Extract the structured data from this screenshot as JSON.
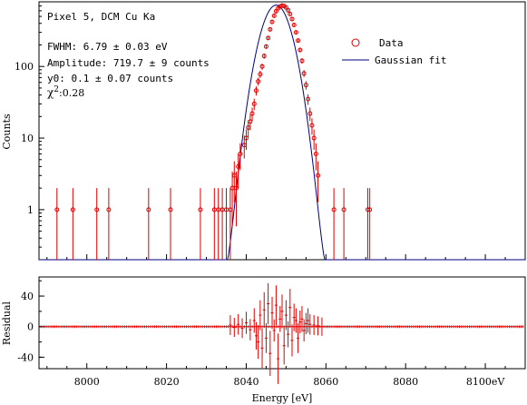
{
  "chart_data": [
    {
      "type": "scatter",
      "panel": "main",
      "annotations": {
        "title": "Pixel 5, DCM Cu Ka",
        "fwhm": "FWHM: 6.79 ± 0.03 eV",
        "amplitude": "Amplitude: 719.7 ± 9 counts",
        "y0": "y0: 0.1 ± 0.07 counts",
        "chi_symbol": "χ",
        "chi_sup": "2",
        "chi_value": ":0.28"
      },
      "ylabel": "Counts",
      "yscale": "log",
      "ylim": [
        0.2,
        800
      ],
      "yticks": [
        {
          "value": 1,
          "label": "1"
        },
        {
          "value": 10,
          "label": "10"
        },
        {
          "value": 100,
          "label": "100"
        }
      ],
      "xlim": [
        7988,
        8110
      ],
      "legend": {
        "position": "top-right",
        "entries": [
          {
            "label": "Data",
            "marker": "open-circle",
            "color": "#dd0000"
          },
          {
            "label": "Gaussian fit",
            "marker": "line",
            "color": "#000080"
          }
        ]
      },
      "fit": {
        "center": 8047.5,
        "fwhm": 6.79,
        "amplitude": 719.7,
        "offset": 0.1,
        "color": "#000080"
      },
      "series": [
        {
          "name": "Data",
          "color": "#dd0000",
          "points": [
            [
              7992.5,
              1
            ],
            [
              7996.5,
              1
            ],
            [
              8002.5,
              1
            ],
            [
              8005.5,
              1
            ],
            [
              8015.5,
              1
            ],
            [
              8021,
              1
            ],
            [
              8028.5,
              1
            ],
            [
              8032,
              1
            ],
            [
              8033,
              1
            ],
            [
              8034,
              1
            ],
            [
              8035,
              1
            ],
            [
              8036,
              1
            ],
            [
              8036.5,
              2
            ],
            [
              8037,
              3
            ],
            [
              8037.5,
              2
            ],
            [
              8038,
              4
            ],
            [
              8038.5,
              6
            ],
            [
              8039.5,
              8
            ],
            [
              8040,
              10
            ],
            [
              8040.5,
              14
            ],
            [
              8041,
              17
            ],
            [
              8041.5,
              22
            ],
            [
              8042,
              30
            ],
            [
              8042.5,
              46
            ],
            [
              8043,
              62
            ],
            [
              8043.5,
              78
            ],
            [
              8044,
              100
            ],
            [
              8044.5,
              140
            ],
            [
              8045,
              190
            ],
            [
              8045.5,
              250
            ],
            [
              8046,
              330
            ],
            [
              8046.5,
              420
            ],
            [
              8047,
              510
            ],
            [
              8047.5,
              590
            ],
            [
              8048,
              650
            ],
            [
              8048.5,
              690
            ],
            [
              8049,
              710
            ],
            [
              8049.5,
              700
            ],
            [
              8050,
              665
            ],
            [
              8050.5,
              610
            ],
            [
              8051,
              540
            ],
            [
              8051.5,
              460
            ],
            [
              8052,
              380
            ],
            [
              8052.5,
              300
            ],
            [
              8053,
              230
            ],
            [
              8053.5,
              170
            ],
            [
              8054,
              120
            ],
            [
              8054.5,
              80
            ],
            [
              8055,
              55
            ],
            [
              8055.5,
              35
            ],
            [
              8056,
              22
            ],
            [
              8056.5,
              15
            ],
            [
              8057,
              10
            ],
            [
              8057.5,
              6
            ],
            [
              8058,
              3
            ],
            [
              8062,
              1
            ],
            [
              8064.5,
              1
            ],
            [
              8070.5,
              1
            ],
            [
              8071,
              1
            ]
          ]
        }
      ]
    },
    {
      "type": "scatter",
      "panel": "residual",
      "ylabel": "Residual",
      "ylim": [
        -55,
        65
      ],
      "yticks": [
        {
          "value": -40,
          "label": "-40"
        },
        {
          "value": 0,
          "label": "0"
        },
        {
          "value": 40,
          "label": "40"
        }
      ],
      "xlabel": "Energy [eV]",
      "xlim": [
        7988,
        8110
      ],
      "xticks": [
        {
          "value": 8000,
          "label": "8000"
        },
        {
          "value": 8020,
          "label": "8020"
        },
        {
          "value": 8040,
          "label": "8040"
        },
        {
          "value": 8060,
          "label": "8060"
        },
        {
          "value": 8080,
          "label": "8080"
        },
        {
          "value": 8100,
          "label": "8100eV"
        }
      ],
      "series": [
        {
          "name": "Residual",
          "color": "#dd0000",
          "points": [
            [
              8036,
              2
            ],
            [
              8037,
              -1
            ],
            [
              8038,
              3
            ],
            [
              8039,
              -2
            ],
            [
              8040,
              5
            ],
            [
              8041,
              -4
            ],
            [
              8042,
              8
            ],
            [
              8042.5,
              -12
            ],
            [
              8043,
              -20
            ],
            [
              8043.5,
              15
            ],
            [
              8044,
              -28
            ],
            [
              8044.5,
              22
            ],
            [
              8045,
              -15
            ],
            [
              8045.5,
              30
            ],
            [
              8046,
              -35
            ],
            [
              8046.5,
              18
            ],
            [
              8047,
              -5
            ],
            [
              8047.5,
              28
            ],
            [
              8048,
              -42
            ],
            [
              8048.5,
              10
            ],
            [
              8049,
              20
            ],
            [
              8049.5,
              -25
            ],
            [
              8050,
              15
            ],
            [
              8050.5,
              -10
            ],
            [
              8051,
              25
            ],
            [
              8051.5,
              -18
            ],
            [
              8052,
              12
            ],
            [
              8052.5,
              8
            ],
            [
              8053,
              -15
            ],
            [
              8053.5,
              6
            ],
            [
              8054,
              10
            ],
            [
              8054.5,
              -5
            ],
            [
              8055,
              4
            ],
            [
              8055.5,
              8
            ],
            [
              8056,
              3
            ],
            [
              8057,
              2
            ],
            [
              8058,
              1
            ],
            [
              8059,
              0
            ]
          ]
        }
      ]
    }
  ]
}
